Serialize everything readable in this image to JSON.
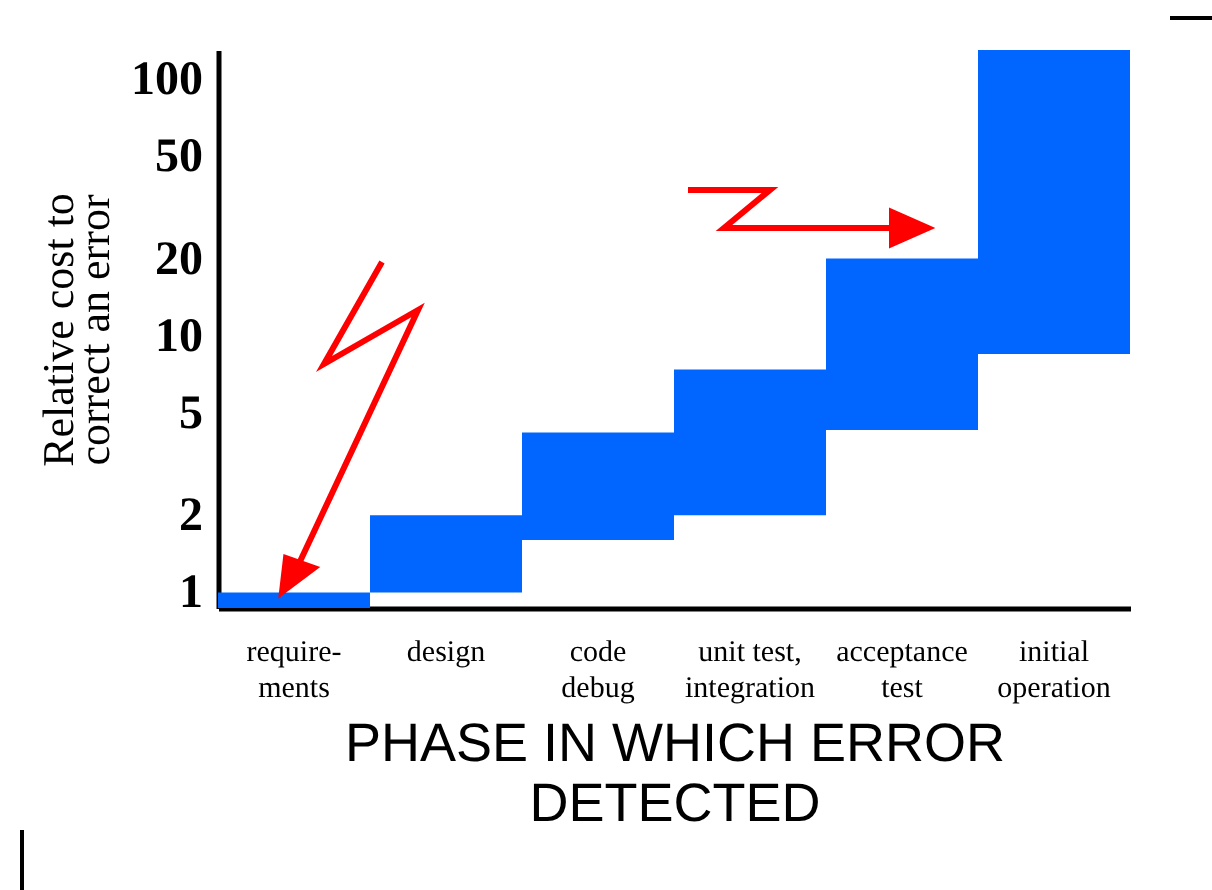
{
  "chart_data": {
    "type": "bar",
    "xlabel": "PHASE IN WHICH ERROR\nDETECTED",
    "ylabel": "Relative cost to\ncorrect an error",
    "categories": [
      "require-\nments",
      "design",
      "code\ndebug",
      "unit test,\nintegration",
      "acceptance\ntest",
      "initial\noperation"
    ],
    "base": [
      0.87,
      1,
      1.6,
      2,
      4.3,
      8.5
    ],
    "values": [
      0.13,
      1,
      2.6,
      5.4,
      15.7,
      121.5
    ],
    "color": "#0066ff",
    "log": "y",
    "ylim": [
      0.87,
      130
    ],
    "yticks": [
      1,
      2,
      5,
      10,
      20,
      50,
      100
    ],
    "grid": false
  }
}
